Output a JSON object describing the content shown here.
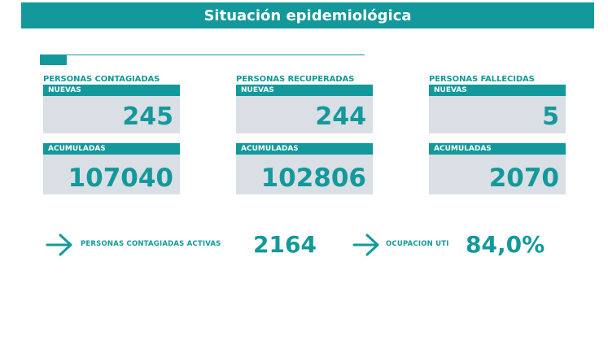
{
  "header": {
    "title": "Situación epidemiológica"
  },
  "columns": [
    {
      "title": "PERSONAS CONTAGIADAS",
      "nuevas_label": "NUEVAS",
      "nuevas_value": "245",
      "acumuladas_label": "ACUMULADAS",
      "acumuladas_value": "107040"
    },
    {
      "title": "PERSONAS RECUPERADAS",
      "nuevas_label": "NUEVAS",
      "nuevas_value": "244",
      "acumuladas_label": "ACUMULADAS",
      "acumuladas_value": "102806"
    },
    {
      "title": "PERSONAS FALLECIDAS",
      "nuevas_label": "NUEVAS",
      "nuevas_value": "5",
      "acumuladas_label": "ACUMULADAS",
      "acumuladas_value": "2070"
    }
  ],
  "summary": {
    "activas_label": "PERSONAS CONTAGIADAS ACTIVAS",
    "activas_value": "2164",
    "uti_label": "OCUPACION UTI",
    "uti_value": "84,0%"
  },
  "icons": {
    "arrow": "arrow-right-icon"
  },
  "colors": {
    "accent": "#13999b",
    "box_bg": "#d9dfe5"
  }
}
